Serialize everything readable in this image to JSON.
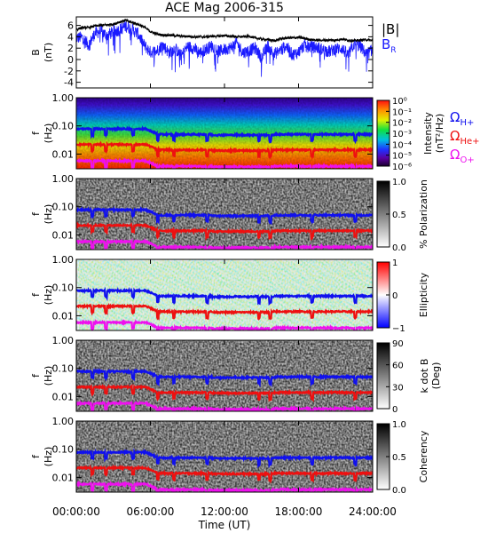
{
  "title": "ACE Mag 2006-315",
  "xaxis": {
    "label": "Time (UT)",
    "ticks": [
      "00:00:00",
      "06:00:00",
      "12:00:00",
      "18:00:00",
      "24:00:00"
    ]
  },
  "colors": {
    "bmag": "#000000",
    "br": "#1a1aff",
    "h": "#1010ee",
    "he": "#ee1010",
    "o": "#ee10ee"
  },
  "chart_data": [
    {
      "type": "line",
      "ylabel": "B",
      "yunit": "(nT)",
      "yticks": [
        "6",
        "4",
        "2",
        "0",
        "-2",
        "-4"
      ],
      "ylim": [
        -5,
        7.5
      ],
      "x_hours": [
        0,
        0.5,
        1,
        1.5,
        2,
        2.5,
        3,
        3.5,
        4,
        4.5,
        5,
        5.5,
        6,
        6.5,
        7,
        7.5,
        8,
        8.5,
        9,
        9.5,
        10,
        10.5,
        11,
        11.5,
        12,
        12.5,
        13,
        13.5,
        14,
        14.5,
        15,
        15.5,
        16,
        16.5,
        17,
        17.5,
        18,
        18.5,
        19,
        19.5,
        20,
        20.5,
        21,
        21.5,
        22,
        22.5,
        23,
        23.5,
        24
      ],
      "series": [
        {
          "name": "|B|",
          "values": [
            5.3,
            5.6,
            5.6,
            5.9,
            6.0,
            6.1,
            6.2,
            6.6,
            6.9,
            6.5,
            6.2,
            5.7,
            4.9,
            4.5,
            4.3,
            4.3,
            4.2,
            4.1,
            4.1,
            4.0,
            4.0,
            4.0,
            4.1,
            4.1,
            4.2,
            4.1,
            4.0,
            4.0,
            4.1,
            3.8,
            3.6,
            3.5,
            3.3,
            3.6,
            3.8,
            3.8,
            3.9,
            3.7,
            3.5,
            3.4,
            3.4,
            3.4,
            3.4,
            3.6,
            3.4,
            3.3,
            3.4,
            3.5,
            3.3
          ]
        },
        {
          "name": "BR",
          "values": [
            3.8,
            3.9,
            2.5,
            4.6,
            5.0,
            4.2,
            4.9,
            5.2,
            5.9,
            5.3,
            4.5,
            2.5,
            1.3,
            1.5,
            2.6,
            1.2,
            2.0,
            0.6,
            2.3,
            2.0,
            1.2,
            1.8,
            2.4,
            1.4,
            1.8,
            2.1,
            2.9,
            1.2,
            1.6,
            2.0,
            0.3,
            2.4,
            0.9,
            1.6,
            2.4,
            0.8,
            1.3,
            2.6,
            2.2,
            2.1,
            1.7,
            1.4,
            1.9,
            2.0,
            0.7,
            2.7,
            2.3,
            0.9,
            1.8
          ]
        }
      ]
    },
    {
      "type": "heatmap",
      "ylabel": "f",
      "yunit": "(Hz)",
      "yticks": [
        "1.00",
        "0.10",
        "0.01"
      ],
      "ylim": [
        0.003,
        1.0
      ],
      "yscale": "log",
      "colorbar": {
        "label": "Intensity",
        "unit": "(nT²/Hz)",
        "ticks": [
          "10⁰",
          "10⁻¹",
          "10⁻²",
          "10⁻³",
          "10⁻⁴",
          "10⁻⁵",
          "10⁻⁶"
        ],
        "range": [
          1e-06,
          1
        ],
        "scale": "log",
        "palette": "rainbow"
      },
      "legend": [
        {
          "name": "ΩH+",
          "color": "#1010ee"
        },
        {
          "name": "ΩHe+",
          "color": "#ee1010"
        },
        {
          "name": "ΩO+",
          "color": "#ee10ee"
        }
      ]
    },
    {
      "type": "heatmap",
      "ylabel": "f",
      "yunit": "(Hz)",
      "yticks": [
        "1.00",
        "0.10",
        "0.01"
      ],
      "ylim": [
        0.003,
        1.0
      ],
      "yscale": "log",
      "colorbar": {
        "label": "% Polarization",
        "ticks": [
          "1.0",
          "0.5",
          "0.0"
        ],
        "range": [
          0,
          1
        ],
        "palette": "gray"
      }
    },
    {
      "type": "heatmap",
      "ylabel": "f",
      "yunit": "(Hz)",
      "yticks": [
        "1.00",
        "0.10",
        "0.01"
      ],
      "ylim": [
        0.003,
        1.0
      ],
      "yscale": "log",
      "colorbar": {
        "label": "Ellipticity",
        "ticks": [
          "1",
          "0",
          "−1"
        ],
        "range": [
          -1,
          1
        ],
        "palette": "blue-white-red"
      }
    },
    {
      "type": "heatmap",
      "ylabel": "f",
      "yunit": "(Hz)",
      "yticks": [
        "1.00",
        "0.10",
        "0.01"
      ],
      "ylim": [
        0.003,
        1.0
      ],
      "yscale": "log",
      "colorbar": {
        "label": "k dot B",
        "unit": "(Deg)",
        "ticks": [
          "90",
          "60",
          "30",
          "0"
        ],
        "range": [
          0,
          90
        ],
        "palette": "gray"
      }
    },
    {
      "type": "heatmap",
      "ylabel": "f",
      "yunit": "(Hz)",
      "yticks": [
        "1.00",
        "0.10",
        "0.01"
      ],
      "ylim": [
        0.003,
        1.0
      ],
      "yscale": "log",
      "colorbar": {
        "label": "Coherency",
        "ticks": [
          "1.0",
          "0.5",
          "0.0"
        ],
        "range": [
          0,
          1
        ],
        "palette": "gray"
      }
    }
  ]
}
